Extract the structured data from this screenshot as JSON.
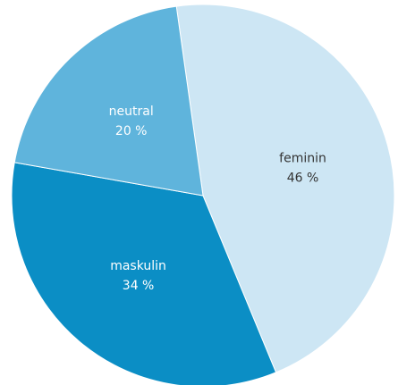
{
  "chart_data": {
    "type": "pie",
    "categories": [
      "feminin",
      "maskulin",
      "neutral"
    ],
    "values": [
      46,
      34,
      20
    ],
    "value_labels": [
      "46 %",
      "34 %",
      "20 %"
    ],
    "colors": [
      "#cde6f4",
      "#0b8ec5",
      "#5fb4dc"
    ]
  }
}
